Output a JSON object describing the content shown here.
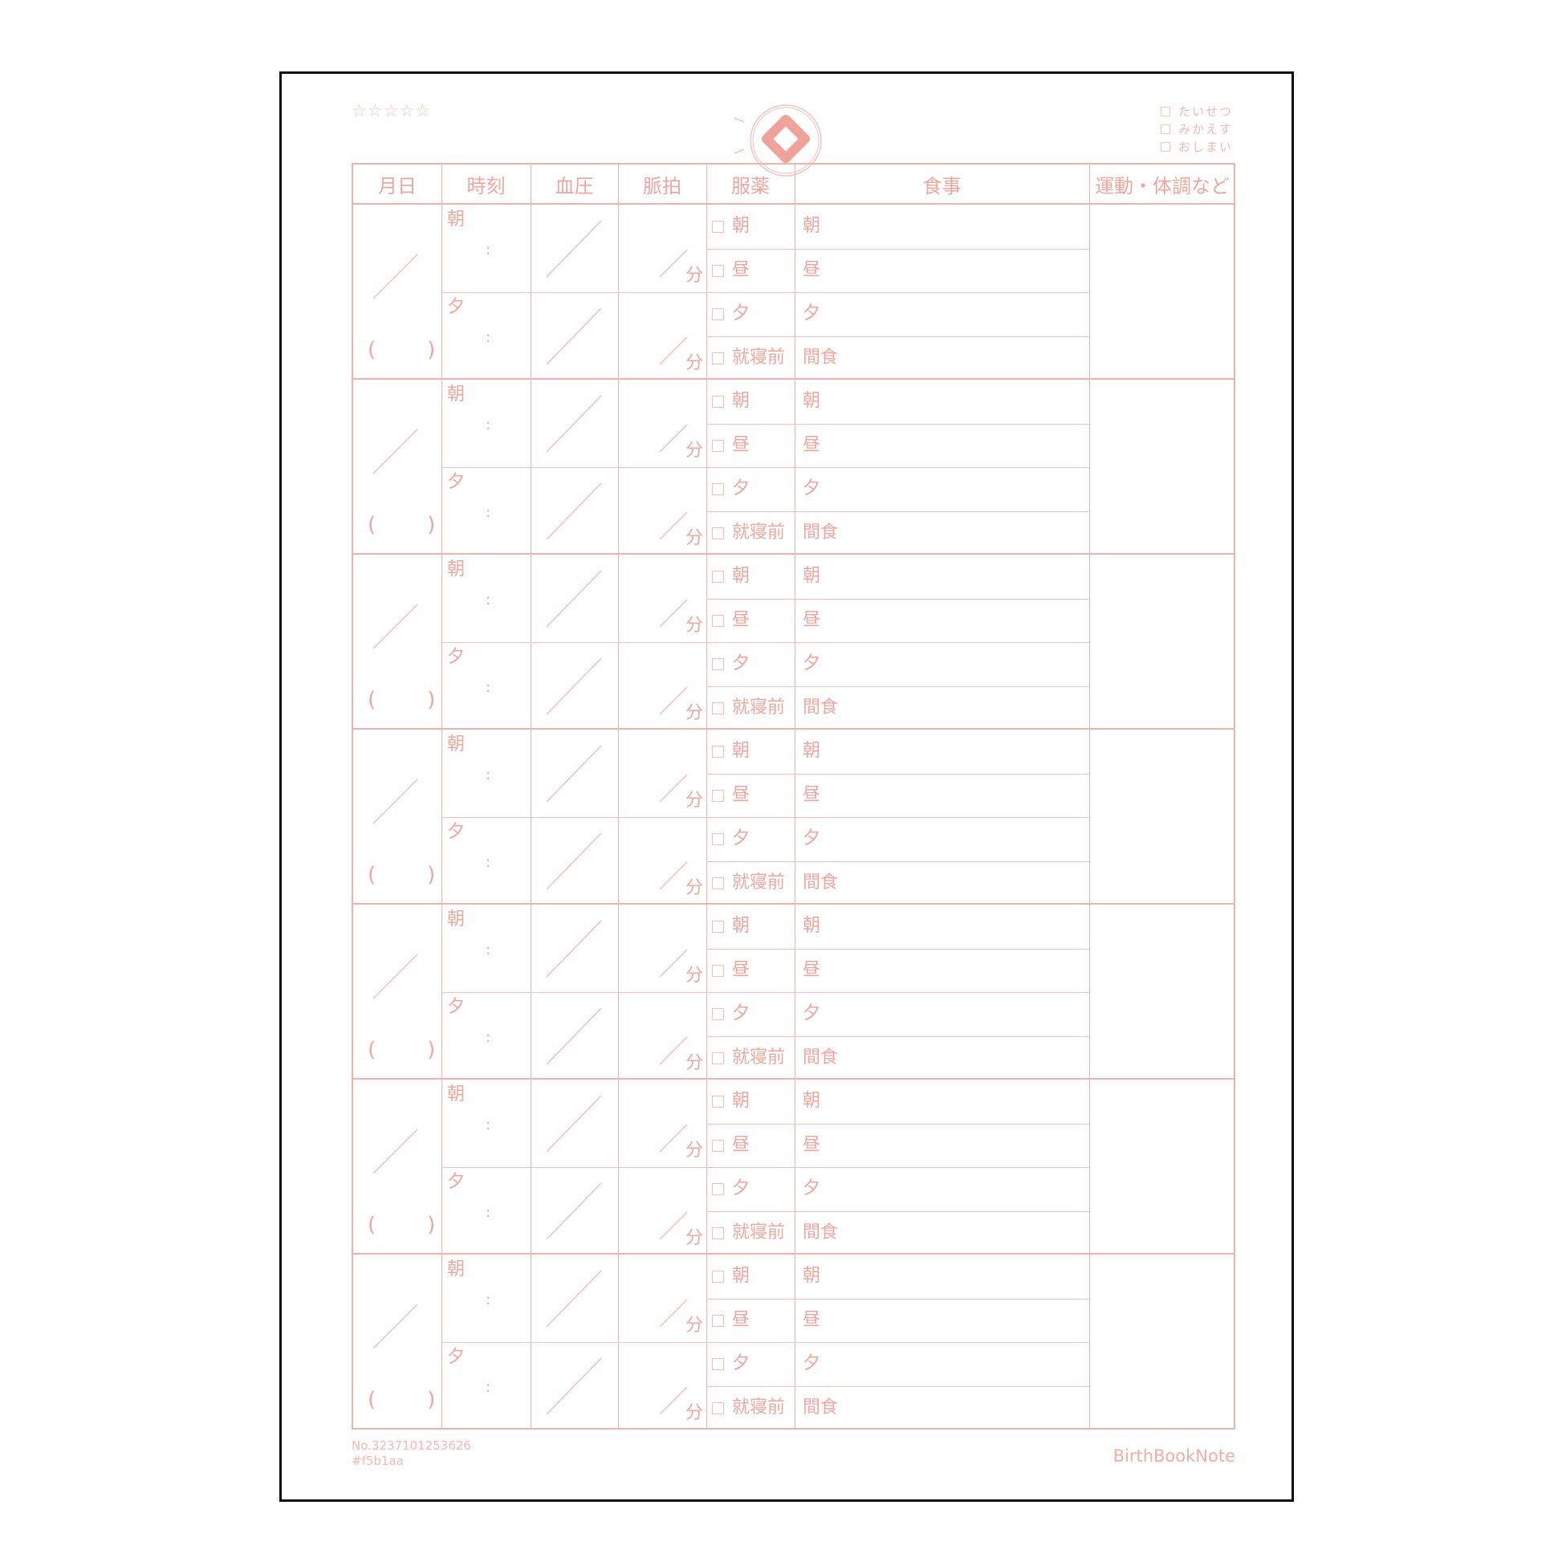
{
  "rating_stars": "☆☆☆☆☆",
  "top_checklist": [
    "たいせつ",
    "みかえす",
    "おしまい"
  ],
  "logo": "diamond-ribbon-logo",
  "colors": {
    "line": "#f5b1aa",
    "text": "#eea79f",
    "frame": "#111111"
  },
  "headers": [
    "月日",
    "時刻",
    "血圧",
    "脈拍",
    "服薬",
    "食事",
    "運動・体調など"
  ],
  "blocks": [
    {
      "date_parens": "(　　)",
      "time": [
        "朝",
        "夕"
      ],
      "time_colon": ":",
      "pulse_unit": "分",
      "meds": [
        "朝",
        "昼",
        "夕",
        "就寝前"
      ],
      "meals": [
        "朝",
        "昼",
        "夕",
        "間食"
      ]
    },
    {
      "date_parens": "(　　)",
      "time": [
        "朝",
        "夕"
      ],
      "time_colon": ":",
      "pulse_unit": "分",
      "meds": [
        "朝",
        "昼",
        "夕",
        "就寝前"
      ],
      "meals": [
        "朝",
        "昼",
        "夕",
        "間食"
      ]
    },
    {
      "date_parens": "(　　)",
      "time": [
        "朝",
        "夕"
      ],
      "time_colon": ":",
      "pulse_unit": "分",
      "meds": [
        "朝",
        "昼",
        "夕",
        "就寝前"
      ],
      "meals": [
        "朝",
        "昼",
        "夕",
        "間食"
      ]
    },
    {
      "date_parens": "(　　)",
      "time": [
        "朝",
        "夕"
      ],
      "time_colon": ":",
      "pulse_unit": "分",
      "meds": [
        "朝",
        "昼",
        "夕",
        "就寝前"
      ],
      "meals": [
        "朝",
        "昼",
        "夕",
        "間食"
      ]
    },
    {
      "date_parens": "(　　)",
      "time": [
        "朝",
        "夕"
      ],
      "time_colon": ":",
      "pulse_unit": "分",
      "meds": [
        "朝",
        "昼",
        "夕",
        "就寝前"
      ],
      "meals": [
        "朝",
        "昼",
        "夕",
        "間食"
      ]
    },
    {
      "date_parens": "(　　)",
      "time": [
        "朝",
        "夕"
      ],
      "time_colon": ":",
      "pulse_unit": "分",
      "meds": [
        "朝",
        "昼",
        "夕",
        "就寝前"
      ],
      "meals": [
        "朝",
        "昼",
        "夕",
        "間食"
      ]
    },
    {
      "date_parens": "(　　)",
      "time": [
        "朝",
        "夕"
      ],
      "time_colon": ":",
      "pulse_unit": "分",
      "meds": [
        "朝",
        "昼",
        "夕",
        "就寝前"
      ],
      "meals": [
        "朝",
        "昼",
        "夕",
        "間食"
      ]
    }
  ],
  "footer": {
    "number": "No.3237101253626",
    "color_code": "#f5b1aa",
    "brand": "BirthBookNote"
  }
}
